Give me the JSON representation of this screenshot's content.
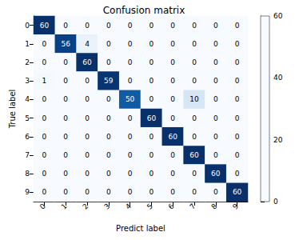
{
  "chart_data": {
    "type": "heatmap",
    "title": "Confusion matrix",
    "x_label": "Predict label",
    "y_label": "True label",
    "x": [
      "0",
      "1",
      "2",
      "3",
      "4",
      "5",
      "6",
      "7",
      "8",
      "9"
    ],
    "y": [
      "0",
      "1",
      "2",
      "3",
      "4",
      "5",
      "6",
      "7",
      "8",
      "9"
    ],
    "cells": [
      [
        60,
        0,
        0,
        0,
        0,
        0,
        0,
        0,
        0,
        0
      ],
      [
        0,
        56,
        4,
        0,
        0,
        0,
        0,
        0,
        0,
        0
      ],
      [
        0,
        0,
        60,
        0,
        0,
        0,
        0,
        0,
        0,
        0
      ],
      [
        1,
        0,
        0,
        59,
        0,
        0,
        0,
        0,
        0,
        0
      ],
      [
        0,
        0,
        0,
        0,
        50,
        0,
        0,
        10,
        0,
        0
      ],
      [
        0,
        0,
        0,
        0,
        0,
        60,
        0,
        0,
        0,
        0
      ],
      [
        0,
        0,
        0,
        0,
        0,
        0,
        60,
        0,
        0,
        0
      ],
      [
        0,
        0,
        0,
        0,
        0,
        0,
        0,
        60,
        0,
        0
      ],
      [
        0,
        0,
        0,
        0,
        0,
        0,
        0,
        0,
        60,
        0
      ],
      [
        0,
        0,
        0,
        0,
        0,
        0,
        0,
        0,
        0,
        60
      ]
    ],
    "colorbar": {
      "range": [
        0,
        60
      ],
      "ticks": [
        0,
        20,
        40,
        60
      ]
    },
    "color": "Blues",
    "data_labels": true
  }
}
